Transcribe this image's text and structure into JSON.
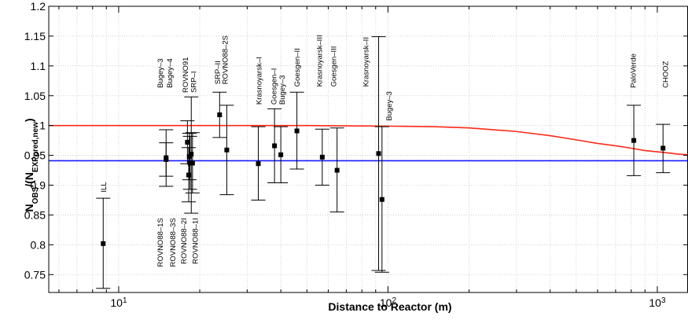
{
  "chart_data": {
    "type": "scatter",
    "title": "",
    "xlabel": "Distance to Reactor (m)",
    "ylabel_main": "N",
    "ylabel_sub1": "OBS",
    "ylabel_mid": "/(N",
    "ylabel_sub2": "EXP",
    "ylabel_sub3": "pred,new",
    "ylabel_end": ")",
    "xscale": "log",
    "xlim": [
      5.5,
      1300
    ],
    "ylim": [
      0.72,
      1.2
    ],
    "grid": true,
    "x_tick_labels": [
      {
        "base": "10",
        "exp": "1",
        "value": 10
      },
      {
        "base": "10",
        "exp": "2",
        "value": 100
      },
      {
        "base": "10",
        "exp": "3",
        "value": 1000
      }
    ],
    "y_ticks": [
      0.75,
      0.8,
      0.85,
      0.9,
      0.95,
      1,
      1.05,
      1.1,
      1.15,
      1.2
    ],
    "y_tick_labels": [
      "0.75",
      "0.8",
      "0.85",
      "0.9",
      "0.95",
      "1",
      "1.05",
      "1.1",
      "1.15",
      "1.2"
    ],
    "reference_lines": [
      {
        "y": 0.941,
        "color": "#1a1aff"
      }
    ],
    "oscillation_curve": {
      "color": "#ff2a1a",
      "points": [
        [
          5.5,
          1.0
        ],
        [
          50,
          1.0
        ],
        [
          100,
          0.999
        ],
        [
          150,
          0.998
        ],
        [
          200,
          0.996
        ],
        [
          300,
          0.99
        ],
        [
          400,
          0.983
        ],
        [
          500,
          0.976
        ],
        [
          600,
          0.97
        ],
        [
          700,
          0.966
        ],
        [
          800,
          0.962
        ],
        [
          900,
          0.958
        ],
        [
          1000,
          0.956
        ],
        [
          1100,
          0.954
        ],
        [
          1200,
          0.952
        ],
        [
          1300,
          0.951
        ]
      ]
    },
    "points": [
      {
        "x": 8.76,
        "y": 0.802,
        "lo": 0.727,
        "hi": 0.878
      },
      {
        "x": 15.0,
        "y": 0.946,
        "lo": 0.898,
        "hi": 0.993
      },
      {
        "x": 15.0,
        "y": 0.943,
        "lo": 0.915,
        "hi": 0.971
      },
      {
        "x": 18.0,
        "y": 0.972,
        "lo": 0.936,
        "hi": 1.008
      },
      {
        "x": 18.2,
        "y": 0.917,
        "lo": 0.872,
        "hi": 0.963
      },
      {
        "x": 18.3,
        "y": 0.948,
        "lo": 0.909,
        "hi": 0.987
      },
      {
        "x": 18.4,
        "y": 0.937,
        "lo": 0.893,
        "hi": 0.982
      },
      {
        "x": 18.6,
        "y": 0.952,
        "lo": 0.853,
        "hi": 1.048
      },
      {
        "x": 18.8,
        "y": 0.937,
        "lo": 0.887,
        "hi": 0.988
      },
      {
        "x": 23.7,
        "y": 1.018,
        "lo": 0.98,
        "hi": 1.056
      },
      {
        "x": 25.2,
        "y": 0.959,
        "lo": 0.884,
        "hi": 1.034
      },
      {
        "x": 33.0,
        "y": 0.936,
        "lo": 0.875,
        "hi": 0.998
      },
      {
        "x": 37.9,
        "y": 0.966,
        "lo": 0.904,
        "hi": 1.028
      },
      {
        "x": 40.0,
        "y": 0.951,
        "lo": 0.904,
        "hi": 0.998
      },
      {
        "x": 45.9,
        "y": 0.991,
        "lo": 0.927,
        "hi": 1.056
      },
      {
        "x": 57.0,
        "y": 0.947,
        "lo": 0.9,
        "hi": 0.994
      },
      {
        "x": 64.7,
        "y": 0.925,
        "lo": 0.855,
        "hi": 0.996
      },
      {
        "x": 92.3,
        "y": 0.953,
        "lo": 0.757,
        "hi": 1.149
      },
      {
        "x": 95.0,
        "y": 0.876,
        "lo": 0.754,
        "hi": 0.998
      },
      {
        "x": 818,
        "y": 0.975,
        "lo": 0.916,
        "hi": 1.034
      },
      {
        "x": 1050,
        "y": 0.962,
        "lo": 0.921,
        "hi": 1.002
      }
    ],
    "labels_up": [
      {
        "text": "ILL",
        "x": 8.8,
        "y_base": 0.888
      },
      {
        "text": "Bugey–3",
        "x": 14.3,
        "y_base": 1.063
      },
      {
        "text": "Bugey–4",
        "x": 15.5,
        "y_base": 1.063
      },
      {
        "text": "ROVNO91",
        "x": 17.7,
        "y_base": 1.055
      },
      {
        "text": "SRP–I",
        "x": 19.0,
        "y_base": 1.055
      },
      {
        "text": "SRP–II",
        "x": 23.3,
        "y_base": 1.069
      },
      {
        "text": "ROVNO88–2S",
        "x": 24.9,
        "y_base": 1.069
      },
      {
        "text": "Krasnoyarsk–I",
        "x": 33.2,
        "y_base": 1.035
      },
      {
        "text": "Goesgen–I",
        "x": 37.8,
        "y_base": 1.035
      },
      {
        "text": "Bugey–3",
        "x": 40.5,
        "y_base": 1.035
      },
      {
        "text": "Goesgen–II",
        "x": 46.0,
        "y_base": 1.065
      },
      {
        "text": "Krasnoyarsk–III",
        "x": 55.8,
        "y_base": 1.065
      },
      {
        "text": "Goesgen–III",
        "x": 63.0,
        "y_base": 1.065
      },
      {
        "text": "Krasnoyarsk–II",
        "x": 83.0,
        "y_base": 1.065
      },
      {
        "text": "Bugey–3",
        "x": 101.0,
        "y_base": 1.008
      },
      {
        "text": "PaloVerde",
        "x": 815,
        "y_base": 1.063
      },
      {
        "text": "CHOOZ",
        "x": 1075,
        "y_base": 1.063
      }
    ],
    "labels_down": [
      {
        "text": "ROVNO88–1S",
        "x": 14.3,
        "y_top": 0.845
      },
      {
        "text": "ROVNO88–3S",
        "x": 15.9,
        "y_top": 0.845
      },
      {
        "text": "ROVNO88–2I",
        "x": 17.5,
        "y_top": 0.845
      },
      {
        "text": "ROVNO88–1I",
        "x": 19.3,
        "y_top": 0.845
      }
    ]
  }
}
